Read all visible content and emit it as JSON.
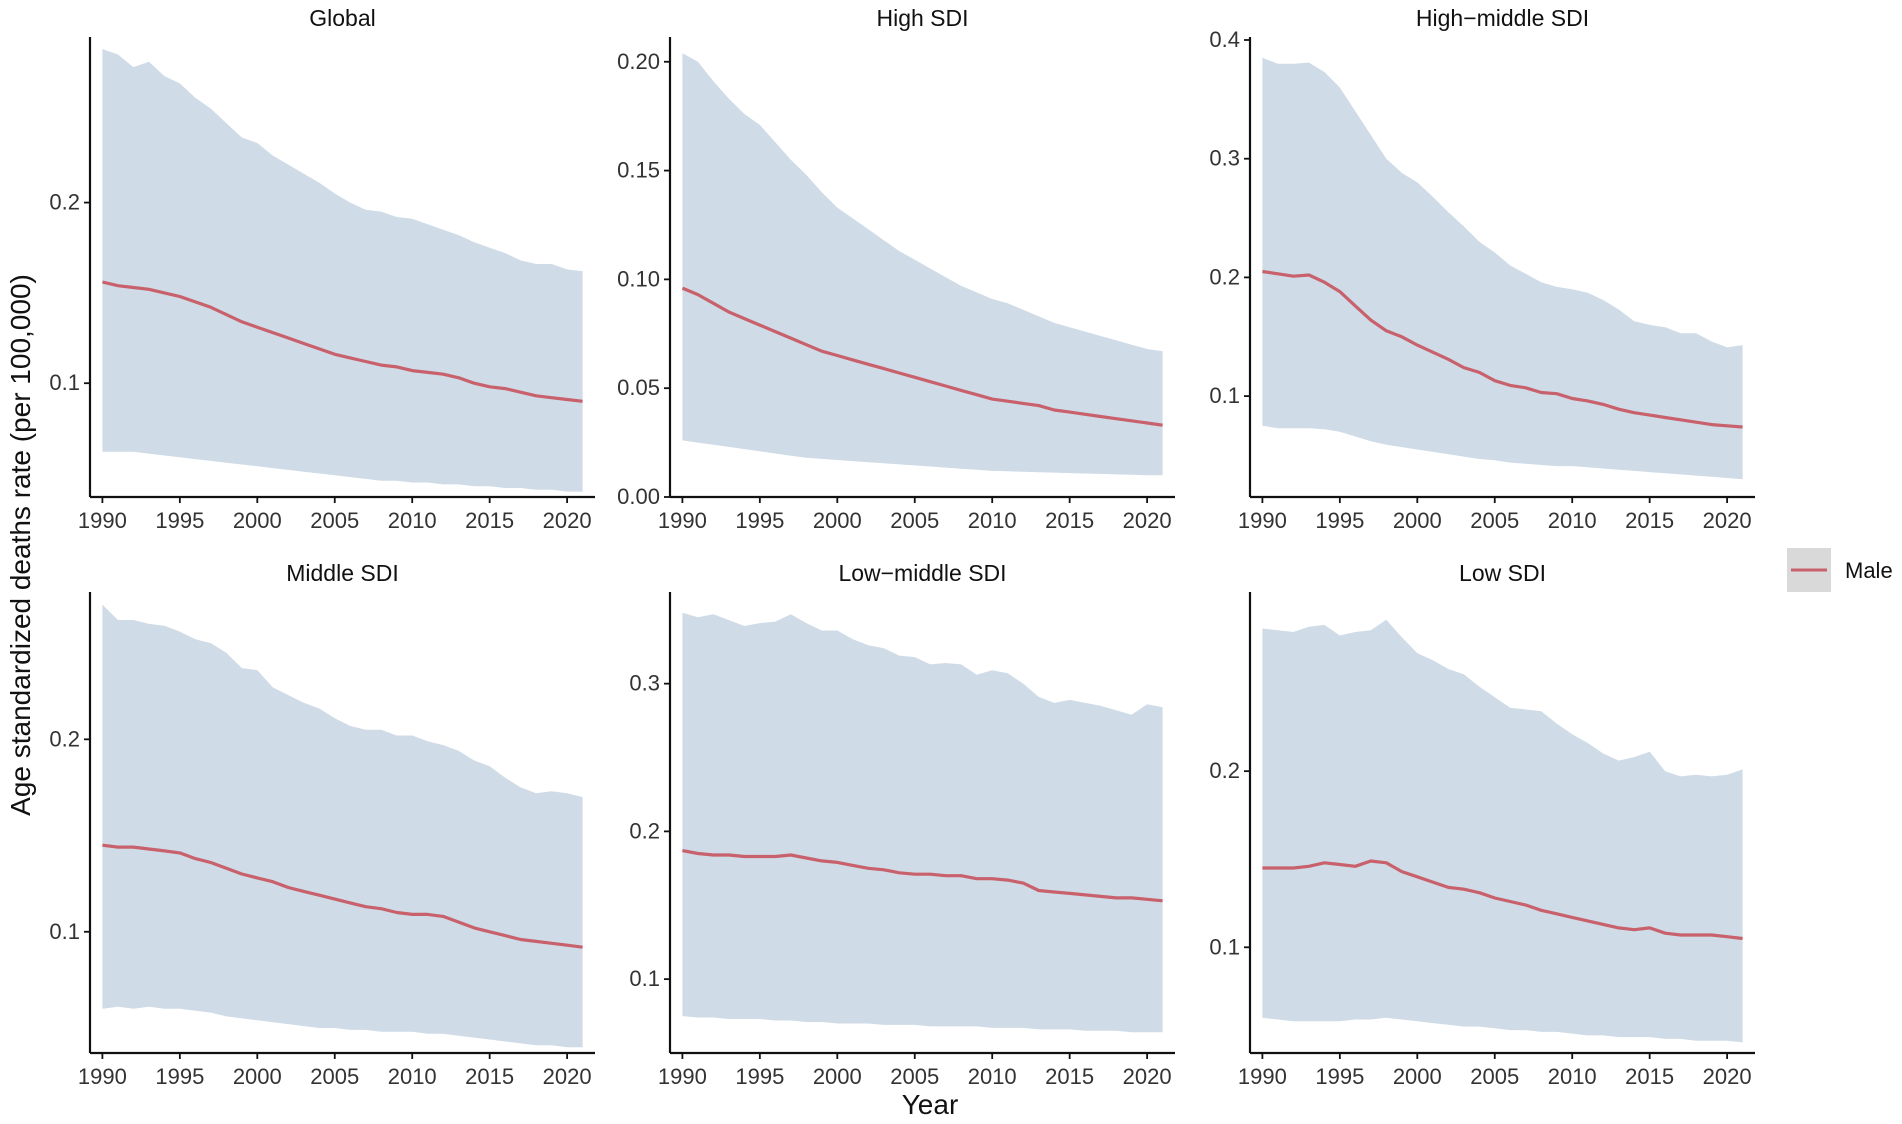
{
  "chart_data": {
    "type": "line",
    "ylabel": "Age standardized deaths rate (per 100,000)",
    "xlabel": "Year",
    "legend": {
      "position": "right",
      "entries": [
        {
          "name": "Male",
          "line_color": "#c8616b",
          "fill_color": "#d9d9d9"
        }
      ]
    },
    "colors": {
      "band": "#cfdbe7",
      "line": "#c8616b",
      "axis": "#111111"
    },
    "x_ticks": [
      1990,
      1995,
      2000,
      2005,
      2010,
      2015,
      2020
    ],
    "x_tick_labels": [
      "1990",
      "1995",
      "2000",
      "2005",
      "2010",
      "2015",
      "2020"
    ],
    "panels": [
      {
        "title": "Global",
        "xlim": [
          1989.2,
          2021.8
        ],
        "ylim": [
          0.037,
          0.29
        ],
        "y_ticks": [
          0.1,
          0.2
        ],
        "y_tick_labels": [
          "0.1",
          "0.2"
        ],
        "series": [
          {
            "name": "Male",
            "x": [
              1990,
              1991,
              1992,
              1993,
              1994,
              1995,
              1996,
              1997,
              1998,
              1999,
              2000,
              2001,
              2002,
              2003,
              2004,
              2005,
              2006,
              2007,
              2008,
              2009,
              2010,
              2011,
              2012,
              2013,
              2014,
              2015,
              2016,
              2017,
              2018,
              2019,
              2020,
              2021
            ],
            "y": [
              0.156,
              0.154,
              0.153,
              0.152,
              0.15,
              0.148,
              0.145,
              0.142,
              0.138,
              0.134,
              0.131,
              0.128,
              0.125,
              0.122,
              0.119,
              0.116,
              0.114,
              0.112,
              0.11,
              0.109,
              0.107,
              0.106,
              0.105,
              0.103,
              0.1,
              0.098,
              0.097,
              0.095,
              0.093,
              0.092,
              0.091,
              0.09
            ],
            "lower": [
              0.062,
              0.062,
              0.062,
              0.061,
              0.06,
              0.059,
              0.058,
              0.057,
              0.056,
              0.055,
              0.054,
              0.053,
              0.052,
              0.051,
              0.05,
              0.049,
              0.048,
              0.047,
              0.046,
              0.046,
              0.045,
              0.045,
              0.044,
              0.044,
              0.043,
              0.043,
              0.042,
              0.042,
              0.041,
              0.041,
              0.04,
              0.04
            ],
            "upper": [
              0.285,
              0.282,
              0.275,
              0.278,
              0.27,
              0.266,
              0.258,
              0.252,
              0.244,
              0.236,
              0.233,
              0.226,
              0.221,
              0.216,
              0.211,
              0.205,
              0.2,
              0.196,
              0.195,
              0.192,
              0.191,
              0.188,
              0.185,
              0.182,
              0.178,
              0.175,
              0.172,
              0.168,
              0.166,
              0.166,
              0.163,
              0.162
            ]
          }
        ]
      },
      {
        "title": "High SDI",
        "xlim": [
          1989.2,
          2021.8
        ],
        "ylim": [
          0.0,
          0.21
        ],
        "y_ticks": [
          0.0,
          0.05,
          0.1,
          0.15,
          0.2
        ],
        "y_tick_labels": [
          "0.00",
          "0.05",
          "0.10",
          "0.15",
          "0.20"
        ],
        "series": [
          {
            "name": "Male",
            "x": [
              1990,
              1991,
              1992,
              1993,
              1994,
              1995,
              1996,
              1997,
              1998,
              1999,
              2000,
              2001,
              2002,
              2003,
              2004,
              2005,
              2006,
              2007,
              2008,
              2009,
              2010,
              2011,
              2012,
              2013,
              2014,
              2015,
              2016,
              2017,
              2018,
              2019,
              2020,
              2021
            ],
            "y": [
              0.096,
              0.093,
              0.089,
              0.085,
              0.082,
              0.079,
              0.076,
              0.073,
              0.07,
              0.067,
              0.065,
              0.063,
              0.061,
              0.059,
              0.057,
              0.055,
              0.053,
              0.051,
              0.049,
              0.047,
              0.045,
              0.044,
              0.043,
              0.042,
              0.04,
              0.039,
              0.038,
              0.037,
              0.036,
              0.035,
              0.034,
              0.033
            ],
            "lower": [
              0.026,
              0.025,
              0.024,
              0.023,
              0.022,
              0.021,
              0.02,
              0.019,
              0.018,
              0.0175,
              0.017,
              0.0165,
              0.016,
              0.0155,
              0.015,
              0.0145,
              0.014,
              0.0135,
              0.013,
              0.0125,
              0.012,
              0.0118,
              0.0116,
              0.0114,
              0.0112,
              0.011,
              0.0108,
              0.0106,
              0.0104,
              0.0102,
              0.01,
              0.01
            ],
            "upper": [
              0.204,
              0.2,
              0.191,
              0.183,
              0.176,
              0.171,
              0.163,
              0.155,
              0.148,
              0.14,
              0.133,
              0.128,
              0.123,
              0.118,
              0.113,
              0.109,
              0.105,
              0.101,
              0.097,
              0.094,
              0.091,
              0.089,
              0.086,
              0.083,
              0.08,
              0.078,
              0.076,
              0.074,
              0.072,
              0.07,
              0.068,
              0.067
            ]
          }
        ]
      },
      {
        "title": "High−middle SDI",
        "xlim": [
          1989.2,
          2021.8
        ],
        "ylim": [
          0.015,
          0.4
        ],
        "y_ticks": [
          0.1,
          0.2,
          0.3,
          0.4
        ],
        "y_tick_labels": [
          "0.1",
          "0.2",
          "0.3",
          "0.4"
        ],
        "series": [
          {
            "name": "Male",
            "x": [
              1990,
              1991,
              1992,
              1993,
              1994,
              1995,
              1996,
              1997,
              1998,
              1999,
              2000,
              2001,
              2002,
              2003,
              2004,
              2005,
              2006,
              2007,
              2008,
              2009,
              2010,
              2011,
              2012,
              2013,
              2014,
              2015,
              2016,
              2017,
              2018,
              2019,
              2020,
              2021
            ],
            "y": [
              0.205,
              0.203,
              0.201,
              0.202,
              0.196,
              0.188,
              0.176,
              0.164,
              0.155,
              0.15,
              0.143,
              0.137,
              0.131,
              0.124,
              0.12,
              0.113,
              0.109,
              0.107,
              0.103,
              0.102,
              0.098,
              0.096,
              0.093,
              0.089,
              0.086,
              0.084,
              0.082,
              0.08,
              0.078,
              0.076,
              0.075,
              0.074
            ],
            "lower": [
              0.075,
              0.073,
              0.073,
              0.073,
              0.072,
              0.07,
              0.066,
              0.062,
              0.059,
              0.057,
              0.055,
              0.053,
              0.051,
              0.049,
              0.047,
              0.046,
              0.044,
              0.043,
              0.042,
              0.041,
              0.041,
              0.04,
              0.039,
              0.038,
              0.037,
              0.036,
              0.035,
              0.034,
              0.033,
              0.032,
              0.031,
              0.03
            ],
            "upper": [
              0.385,
              0.38,
              0.38,
              0.381,
              0.373,
              0.36,
              0.34,
              0.32,
              0.3,
              0.288,
              0.28,
              0.268,
              0.255,
              0.243,
              0.23,
              0.221,
              0.21,
              0.203,
              0.196,
              0.192,
              0.19,
              0.187,
              0.181,
              0.173,
              0.163,
              0.16,
              0.158,
              0.153,
              0.153,
              0.146,
              0.141,
              0.143
            ]
          }
        ]
      },
      {
        "title": "Middle SDI",
        "xlim": [
          1989.2,
          2021.8
        ],
        "ylim": [
          0.037,
          0.275
        ],
        "y_ticks": [
          0.1,
          0.2
        ],
        "y_tick_labels": [
          "0.1",
          "0.2"
        ],
        "series": [
          {
            "name": "Male",
            "x": [
              1990,
              1991,
              1992,
              1993,
              1994,
              1995,
              1996,
              1997,
              1998,
              1999,
              2000,
              2001,
              2002,
              2003,
              2004,
              2005,
              2006,
              2007,
              2008,
              2009,
              2010,
              2011,
              2012,
              2013,
              2014,
              2015,
              2016,
              2017,
              2018,
              2019,
              2020,
              2021
            ],
            "y": [
              0.145,
              0.144,
              0.144,
              0.143,
              0.142,
              0.141,
              0.138,
              0.136,
              0.133,
              0.13,
              0.128,
              0.126,
              0.123,
              0.121,
              0.119,
              0.117,
              0.115,
              0.113,
              0.112,
              0.11,
              0.109,
              0.109,
              0.108,
              0.105,
              0.102,
              0.1,
              0.098,
              0.096,
              0.095,
              0.094,
              0.093,
              0.092
            ],
            "lower": [
              0.06,
              0.061,
              0.06,
              0.061,
              0.06,
              0.06,
              0.059,
              0.058,
              0.056,
              0.055,
              0.054,
              0.053,
              0.052,
              0.051,
              0.05,
              0.05,
              0.049,
              0.049,
              0.048,
              0.048,
              0.048,
              0.047,
              0.047,
              0.046,
              0.045,
              0.044,
              0.043,
              0.042,
              0.041,
              0.041,
              0.04,
              0.04
            ],
            "upper": [
              0.27,
              0.262,
              0.262,
              0.26,
              0.259,
              0.256,
              0.252,
              0.25,
              0.245,
              0.237,
              0.236,
              0.227,
              0.223,
              0.219,
              0.216,
              0.211,
              0.207,
              0.205,
              0.205,
              0.202,
              0.202,
              0.199,
              0.197,
              0.194,
              0.189,
              0.186,
              0.18,
              0.175,
              0.172,
              0.173,
              0.172,
              0.17
            ]
          }
        ]
      },
      {
        "title": "Low−middle SDI",
        "xlim": [
          1989.2,
          2021.8
        ],
        "ylim": [
          0.05,
          0.36
        ],
        "y_ticks": [
          0.1,
          0.2,
          0.3
        ],
        "y_tick_labels": [
          "0.1",
          "0.2",
          "0.3"
        ],
        "series": [
          {
            "name": "Male",
            "x": [
              1990,
              1991,
              1992,
              1993,
              1994,
              1995,
              1996,
              1997,
              1998,
              1999,
              2000,
              2001,
              2002,
              2003,
              2004,
              2005,
              2006,
              2007,
              2008,
              2009,
              2010,
              2011,
              2012,
              2013,
              2014,
              2015,
              2016,
              2017,
              2018,
              2019,
              2020,
              2021
            ],
            "y": [
              0.187,
              0.185,
              0.184,
              0.184,
              0.183,
              0.183,
              0.183,
              0.184,
              0.182,
              0.18,
              0.179,
              0.177,
              0.175,
              0.174,
              0.172,
              0.171,
              0.171,
              0.17,
              0.17,
              0.168,
              0.168,
              0.167,
              0.165,
              0.16,
              0.159,
              0.158,
              0.157,
              0.156,
              0.155,
              0.155,
              0.154,
              0.153
            ],
            "lower": [
              0.075,
              0.074,
              0.074,
              0.073,
              0.073,
              0.073,
              0.072,
              0.072,
              0.071,
              0.071,
              0.07,
              0.07,
              0.07,
              0.069,
              0.069,
              0.069,
              0.068,
              0.068,
              0.068,
              0.068,
              0.067,
              0.067,
              0.067,
              0.066,
              0.066,
              0.066,
              0.065,
              0.065,
              0.065,
              0.064,
              0.064,
              0.064
            ],
            "upper": [
              0.348,
              0.345,
              0.347,
              0.343,
              0.339,
              0.341,
              0.342,
              0.347,
              0.341,
              0.336,
              0.336,
              0.33,
              0.326,
              0.324,
              0.319,
              0.318,
              0.313,
              0.314,
              0.313,
              0.306,
              0.309,
              0.307,
              0.3,
              0.291,
              0.287,
              0.289,
              0.287,
              0.285,
              0.282,
              0.279,
              0.286,
              0.284
            ]
          }
        ]
      },
      {
        "title": "Low SDI",
        "xlim": [
          1989.2,
          2021.8
        ],
        "ylim": [
          0.04,
          0.3
        ],
        "y_ticks": [
          0.1,
          0.2
        ],
        "y_tick_labels": [
          "0.1",
          "0.2"
        ],
        "series": [
          {
            "name": "Male",
            "x": [
              1990,
              1991,
              1992,
              1993,
              1994,
              1995,
              1996,
              1997,
              1998,
              1999,
              2000,
              2001,
              2002,
              2003,
              2004,
              2005,
              2006,
              2007,
              2008,
              2009,
              2010,
              2011,
              2012,
              2013,
              2014,
              2015,
              2016,
              2017,
              2018,
              2019,
              2020,
              2021
            ],
            "y": [
              0.145,
              0.145,
              0.145,
              0.146,
              0.148,
              0.147,
              0.146,
              0.149,
              0.148,
              0.143,
              0.14,
              0.137,
              0.134,
              0.133,
              0.131,
              0.128,
              0.126,
              0.124,
              0.121,
              0.119,
              0.117,
              0.115,
              0.113,
              0.111,
              0.11,
              0.111,
              0.108,
              0.107,
              0.107,
              0.107,
              0.106,
              0.105
            ],
            "lower": [
              0.06,
              0.059,
              0.058,
              0.058,
              0.058,
              0.058,
              0.059,
              0.059,
              0.06,
              0.059,
              0.058,
              0.057,
              0.056,
              0.055,
              0.055,
              0.054,
              0.053,
              0.053,
              0.052,
              0.052,
              0.051,
              0.05,
              0.05,
              0.049,
              0.049,
              0.049,
              0.048,
              0.048,
              0.047,
              0.047,
              0.047,
              0.046
            ],
            "upper": [
              0.281,
              0.28,
              0.279,
              0.282,
              0.283,
              0.277,
              0.279,
              0.28,
              0.286,
              0.276,
              0.267,
              0.263,
              0.258,
              0.255,
              0.248,
              0.242,
              0.236,
              0.235,
              0.234,
              0.227,
              0.221,
              0.216,
              0.21,
              0.206,
              0.208,
              0.211,
              0.2,
              0.197,
              0.198,
              0.197,
              0.198,
              0.201
            ]
          }
        ]
      }
    ]
  }
}
